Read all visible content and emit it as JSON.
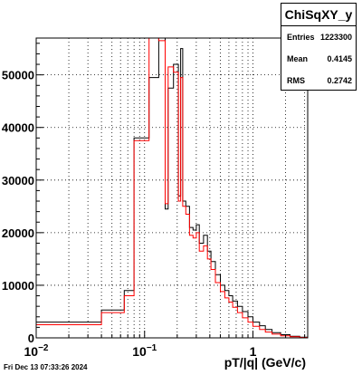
{
  "chart_data": {
    "type": "step histogram",
    "xscale": "log",
    "xlim": [
      0.01,
      3.2
    ],
    "ylim": [
      0,
      57000
    ],
    "xlabel": "pT/|q| (GeV/c)",
    "grid": true,
    "xtick_labels": [
      {
        "value": 0.01,
        "base": "10",
        "exp": "−2"
      },
      {
        "value": 0.1,
        "base": "10",
        "exp": "−1"
      },
      {
        "value": 1,
        "base": "1",
        "exp": ""
      }
    ],
    "yticks": [
      0,
      10000,
      20000,
      30000,
      40000,
      50000
    ],
    "series": [
      {
        "color": "#000000",
        "bins": [
          [
            0.01,
            0.04,
            3000
          ],
          [
            0.04,
            0.065,
            5300
          ],
          [
            0.065,
            0.08,
            9000
          ],
          [
            0.08,
            0.11,
            38000
          ],
          [
            0.11,
            0.135,
            49500
          ],
          [
            0.135,
            0.155,
            57000
          ],
          [
            0.155,
            0.165,
            24500
          ],
          [
            0.165,
            0.185,
            47500
          ],
          [
            0.185,
            0.205,
            52000
          ],
          [
            0.205,
            0.215,
            27000
          ],
          [
            0.215,
            0.225,
            55000
          ],
          [
            0.225,
            0.24,
            26000
          ],
          [
            0.24,
            0.26,
            25000
          ],
          [
            0.26,
            0.28,
            21000
          ],
          [
            0.28,
            0.3,
            20500
          ],
          [
            0.3,
            0.32,
            21500
          ],
          [
            0.32,
            0.35,
            18000
          ],
          [
            0.35,
            0.38,
            19500
          ],
          [
            0.38,
            0.41,
            16500
          ],
          [
            0.41,
            0.45,
            14500
          ],
          [
            0.45,
            0.5,
            12000
          ],
          [
            0.5,
            0.55,
            10000
          ],
          [
            0.55,
            0.6,
            9000
          ],
          [
            0.6,
            0.65,
            8000
          ],
          [
            0.65,
            0.72,
            7000
          ],
          [
            0.72,
            0.8,
            6000
          ],
          [
            0.8,
            0.9,
            5000
          ],
          [
            0.9,
            1.0,
            4000
          ],
          [
            1.0,
            1.15,
            3000
          ],
          [
            1.15,
            1.3,
            2300
          ],
          [
            1.3,
            1.5,
            1600
          ],
          [
            1.5,
            1.8,
            1000
          ],
          [
            1.8,
            2.2,
            600
          ],
          [
            2.2,
            2.7,
            300
          ],
          [
            2.7,
            3.2,
            120
          ]
        ]
      },
      {
        "color": "#ff0000",
        "bins": [
          [
            0.01,
            0.04,
            2500
          ],
          [
            0.04,
            0.065,
            4800
          ],
          [
            0.065,
            0.08,
            8000
          ],
          [
            0.08,
            0.11,
            37500
          ],
          [
            0.11,
            0.135,
            57000
          ],
          [
            0.135,
            0.155,
            56500
          ],
          [
            0.155,
            0.165,
            25500
          ],
          [
            0.165,
            0.185,
            51500
          ],
          [
            0.185,
            0.205,
            50500
          ],
          [
            0.205,
            0.215,
            26000
          ],
          [
            0.215,
            0.225,
            49500
          ],
          [
            0.225,
            0.24,
            25000
          ],
          [
            0.24,
            0.26,
            23500
          ],
          [
            0.26,
            0.28,
            19500
          ],
          [
            0.28,
            0.3,
            19000
          ],
          [
            0.3,
            0.32,
            20000
          ],
          [
            0.32,
            0.35,
            16500
          ],
          [
            0.35,
            0.38,
            17500
          ],
          [
            0.38,
            0.41,
            15000
          ],
          [
            0.41,
            0.45,
            13000
          ],
          [
            0.45,
            0.5,
            10500
          ],
          [
            0.5,
            0.55,
            8800
          ],
          [
            0.55,
            0.6,
            7600
          ],
          [
            0.6,
            0.65,
            6800
          ],
          [
            0.65,
            0.72,
            5800
          ],
          [
            0.72,
            0.8,
            4800
          ],
          [
            0.8,
            0.9,
            3800
          ],
          [
            0.9,
            1.0,
            3000
          ],
          [
            1.0,
            1.15,
            2200
          ],
          [
            1.15,
            1.3,
            1600
          ],
          [
            1.3,
            1.5,
            1100
          ],
          [
            1.5,
            1.8,
            700
          ],
          [
            1.8,
            2.2,
            400
          ],
          [
            2.2,
            2.7,
            200
          ],
          [
            2.7,
            3.2,
            80
          ]
        ]
      }
    ]
  },
  "statbox": {
    "title": "ChiSqXY_y",
    "rows": [
      {
        "label": "Entries",
        "value": "1223300"
      },
      {
        "label": "Mean",
        "value": "0.4145"
      },
      {
        "label": "RMS",
        "value": "0.2742"
      }
    ]
  },
  "datestamp": "Fri Dec 13 07:33:26 2024"
}
